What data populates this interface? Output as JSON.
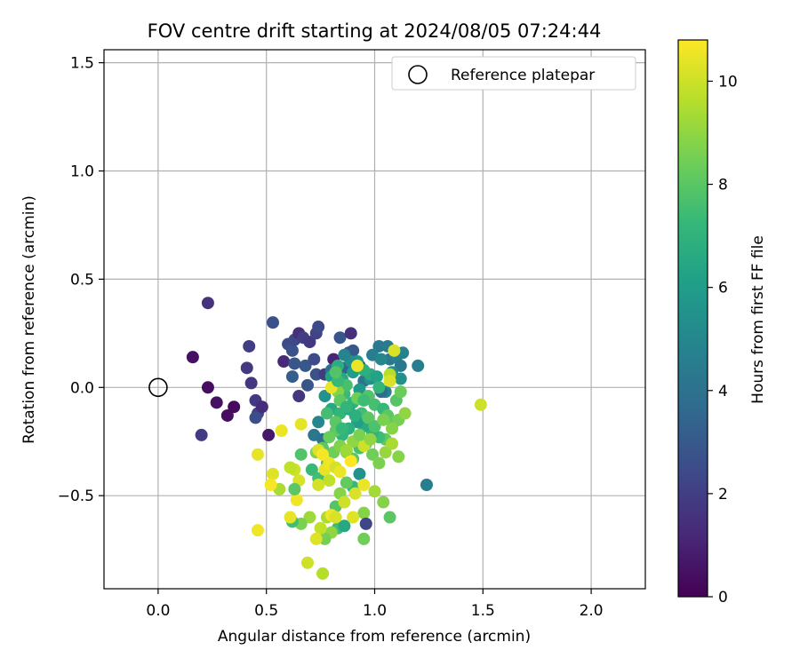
{
  "chart_data": {
    "type": "scatter",
    "title": "FOV centre drift starting at 2024/08/05 07:24:44",
    "xlabel": "Angular distance from reference (arcmin)",
    "ylabel": "Rotation from reference (arcmin)",
    "xlim": [
      -0.25,
      2.25
    ],
    "ylim": [
      -0.93,
      1.56
    ],
    "xticks": [
      "0.0",
      "0.5",
      "1.0",
      "1.5",
      "2.0"
    ],
    "yticks": [
      "−0.5",
      "0.0",
      "0.5",
      "1.0",
      "1.5"
    ],
    "grid": true,
    "legend": {
      "placement": "top-right",
      "label": "Reference platepar"
    },
    "reference_point": {
      "x": 0.0,
      "y": 0.0
    },
    "colorbar": {
      "label": "Hours from first FF file",
      "min": 0,
      "max": 10.8,
      "ticks": [
        "0",
        "2",
        "4",
        "6",
        "8",
        "10"
      ],
      "colormap": "viridis"
    },
    "colors": {
      "viridis": [
        "#440154",
        "#482878",
        "#3e4989",
        "#31688e",
        "#26828e",
        "#1f9e89",
        "#35b779",
        "#6ece58",
        "#b5de2b",
        "#fde725"
      ]
    },
    "points": [
      [
        0.23,
        0.39,
        1.6
      ],
      [
        0.16,
        0.14,
        0.5
      ],
      [
        0.23,
        0.0,
        0.4
      ],
      [
        0.27,
        -0.07,
        0.5
      ],
      [
        0.32,
        -0.13,
        0.4
      ],
      [
        0.35,
        -0.09,
        0.3
      ],
      [
        0.2,
        -0.22,
        1.9
      ],
      [
        0.42,
        0.19,
        2.0
      ],
      [
        0.41,
        0.09,
        1.8
      ],
      [
        0.43,
        0.02,
        1.7
      ],
      [
        0.45,
        -0.06,
        1.8
      ],
      [
        0.46,
        -0.12,
        2.1
      ],
      [
        0.48,
        -0.09,
        1.4
      ],
      [
        0.51,
        -0.22,
        0.7
      ],
      [
        0.45,
        -0.14,
        2.6
      ],
      [
        0.53,
        0.3,
        2.7
      ],
      [
        0.58,
        0.12,
        1.3
      ],
      [
        0.6,
        0.2,
        2.5
      ],
      [
        0.62,
        0.17,
        2.8
      ],
      [
        0.63,
        0.22,
        2.4
      ],
      [
        0.65,
        0.25,
        1.5
      ],
      [
        0.67,
        0.23,
        2.0
      ],
      [
        0.7,
        0.21,
        1.8
      ],
      [
        0.73,
        0.25,
        2.2
      ],
      [
        0.74,
        0.28,
        2.4
      ],
      [
        0.63,
        0.11,
        2.9
      ],
      [
        0.68,
        0.1,
        3.0
      ],
      [
        0.72,
        0.13,
        2.5
      ],
      [
        0.62,
        0.05,
        3.2
      ],
      [
        0.65,
        -0.04,
        1.7
      ],
      [
        0.69,
        0.01,
        2.9
      ],
      [
        0.73,
        0.06,
        2.7
      ],
      [
        0.77,
        0.06,
        1.9
      ],
      [
        0.81,
        0.13,
        1.1
      ],
      [
        0.84,
        0.23,
        2.9
      ],
      [
        0.88,
        0.16,
        3.3
      ],
      [
        0.89,
        0.25,
        1.5
      ],
      [
        0.9,
        0.17,
        3.0
      ],
      [
        0.93,
        0.1,
        1.9
      ],
      [
        0.86,
        0.09,
        3.5
      ],
      [
        0.8,
        0.08,
        3.9
      ],
      [
        0.95,
        0.03,
        4.2
      ],
      [
        0.99,
        0.15,
        4.6
      ],
      [
        1.02,
        0.19,
        4.4
      ],
      [
        1.06,
        0.19,
        4.5
      ],
      [
        1.07,
        0.13,
        4.3
      ],
      [
        1.1,
        0.14,
        4.7
      ],
      [
        1.12,
        0.1,
        4.3
      ],
      [
        1.13,
        0.16,
        4.8
      ],
      [
        1.2,
        0.1,
        4.6
      ],
      [
        1.03,
        0.13,
        5.0
      ],
      [
        1.05,
        -0.02,
        4.8
      ],
      [
        1.08,
        0.07,
        5.2
      ],
      [
        1.12,
        0.04,
        5.4
      ],
      [
        1.03,
        -0.02,
        3.8
      ],
      [
        0.98,
        0.04,
        5.4
      ],
      [
        0.93,
        -0.01,
        5.8
      ],
      [
        0.9,
        0.07,
        6.0
      ],
      [
        0.85,
        0.04,
        6.5
      ],
      [
        0.83,
        0.1,
        6.7
      ],
      [
        0.8,
        0.05,
        6.2
      ],
      [
        0.77,
        -0.04,
        5.5
      ],
      [
        0.74,
        -0.16,
        5.0
      ],
      [
        0.72,
        -0.22,
        4.3
      ],
      [
        0.76,
        -0.24,
        4.0
      ],
      [
        0.8,
        -0.1,
        6.5
      ],
      [
        0.84,
        -0.12,
        7.1
      ],
      [
        0.86,
        -0.03,
        7.3
      ],
      [
        0.9,
        -0.07,
        7.0
      ],
      [
        0.94,
        -0.12,
        7.5
      ],
      [
        0.97,
        -0.04,
        7.8
      ],
      [
        1.0,
        -0.08,
        7.6
      ],
      [
        1.04,
        -0.1,
        7.2
      ],
      [
        1.06,
        -0.13,
        8.0
      ],
      [
        1.09,
        -0.16,
        8.2
      ],
      [
        1.11,
        -0.15,
        8.5
      ],
      [
        1.14,
        -0.12,
        9.0
      ],
      [
        1.08,
        -0.19,
        8.8
      ],
      [
        1.05,
        -0.24,
        8.1
      ],
      [
        1.02,
        -0.23,
        7.4
      ],
      [
        0.99,
        -0.21,
        7.0
      ],
      [
        0.95,
        -0.18,
        6.6
      ],
      [
        0.92,
        -0.16,
        6.1
      ],
      [
        0.88,
        -0.19,
        6.8
      ],
      [
        0.85,
        -0.22,
        7.0
      ],
      [
        0.82,
        -0.2,
        8.1
      ],
      [
        0.79,
        -0.23,
        8.3
      ],
      [
        0.76,
        -0.28,
        8.0
      ],
      [
        0.73,
        -0.3,
        8.6
      ],
      [
        0.71,
        -0.38,
        7.3
      ],
      [
        0.74,
        -0.42,
        7.5
      ],
      [
        0.78,
        -0.35,
        7.8
      ],
      [
        0.81,
        -0.3,
        8.4
      ],
      [
        0.84,
        -0.27,
        8.7
      ],
      [
        0.87,
        -0.3,
        8.9
      ],
      [
        0.9,
        -0.33,
        8.0
      ],
      [
        0.93,
        -0.28,
        7.6
      ],
      [
        0.96,
        -0.26,
        8.2
      ],
      [
        0.99,
        -0.31,
        8.4
      ],
      [
        1.02,
        -0.35,
        8.6
      ],
      [
        1.05,
        -0.3,
        9.1
      ],
      [
        1.08,
        -0.26,
        9.4
      ],
      [
        1.11,
        -0.32,
        8.8
      ],
      [
        1.1,
        -0.06,
        7.9
      ],
      [
        1.12,
        -0.02,
        8.3
      ],
      [
        1.07,
        0.06,
        9.6
      ],
      [
        1.09,
        0.17,
        10.2
      ],
      [
        1.24,
        -0.45,
        4.6
      ],
      [
        1.49,
        -0.08,
        10.0
      ],
      [
        1.0,
        -0.48,
        9.3
      ],
      [
        1.04,
        -0.53,
        8.8
      ],
      [
        1.07,
        -0.6,
        8.0
      ],
      [
        0.95,
        -0.58,
        8.8
      ],
      [
        0.95,
        -0.7,
        8.4
      ],
      [
        0.96,
        -0.63,
        2.3
      ],
      [
        0.93,
        -0.4,
        5.5
      ],
      [
        0.9,
        -0.46,
        7.2
      ],
      [
        0.87,
        -0.44,
        8.2
      ],
      [
        0.84,
        -0.49,
        8.8
      ],
      [
        0.82,
        -0.55,
        7.9
      ],
      [
        0.83,
        -0.65,
        7.4
      ],
      [
        0.86,
        -0.64,
        6.5
      ],
      [
        0.8,
        -0.67,
        9.0
      ],
      [
        0.77,
        -0.7,
        8.5
      ],
      [
        0.78,
        -0.6,
        9.4
      ],
      [
        0.75,
        -0.65,
        9.8
      ],
      [
        0.73,
        -0.7,
        10.3
      ],
      [
        0.76,
        -0.86,
        9.6
      ],
      [
        0.69,
        -0.81,
        10.0
      ],
      [
        0.7,
        -0.6,
        9.2
      ],
      [
        0.66,
        -0.63,
        8.6
      ],
      [
        0.62,
        -0.62,
        7.5
      ],
      [
        0.61,
        -0.6,
        10.4
      ],
      [
        0.64,
        -0.52,
        10.6
      ],
      [
        0.65,
        -0.43,
        10.2
      ],
      [
        0.63,
        -0.38,
        10.0
      ],
      [
        0.61,
        -0.37,
        9.8
      ],
      [
        0.63,
        -0.47,
        8.0
      ],
      [
        0.56,
        -0.47,
        9.4
      ],
      [
        0.53,
        -0.4,
        10.3
      ],
      [
        0.52,
        -0.45,
        10.7
      ],
      [
        0.46,
        -0.31,
        10.4
      ],
      [
        0.46,
        -0.66,
        10.6
      ],
      [
        0.57,
        -0.2,
        10.5
      ],
      [
        0.66,
        -0.17,
        10.4
      ],
      [
        0.66,
        -0.31,
        7.8
      ],
      [
        0.74,
        -0.29,
        10.2
      ],
      [
        0.76,
        -0.31,
        10.7
      ],
      [
        0.77,
        -0.38,
        10.4
      ],
      [
        0.79,
        -0.35,
        10.6
      ],
      [
        0.82,
        -0.37,
        10.1
      ],
      [
        0.84,
        -0.39,
        10.5
      ],
      [
        0.89,
        -0.34,
        10.8
      ],
      [
        0.95,
        -0.27,
        10.0
      ],
      [
        0.91,
        -0.49,
        10.2
      ],
      [
        0.95,
        -0.45,
        10.5
      ],
      [
        0.9,
        -0.6,
        10.3
      ],
      [
        0.8,
        -0.59,
        10.6
      ],
      [
        0.82,
        -0.6,
        10.2
      ],
      [
        0.74,
        -0.45,
        10.1
      ],
      [
        0.79,
        -0.43,
        9.8
      ],
      [
        0.86,
        -0.53,
        10.0
      ],
      [
        0.9,
        -0.25,
        9.0
      ],
      [
        0.93,
        -0.22,
        8.6
      ],
      [
        0.97,
        -0.14,
        8.0
      ],
      [
        0.92,
        -0.05,
        8.4
      ],
      [
        0.87,
        0.01,
        7.6
      ],
      [
        0.83,
        -0.02,
        8.8
      ],
      [
        0.8,
        0.0,
        10.5
      ],
      [
        0.78,
        -0.12,
        7.5
      ],
      [
        0.82,
        -0.16,
        8.0
      ],
      [
        0.85,
        -0.19,
        7.2
      ],
      [
        0.88,
        -0.1,
        6.4
      ],
      [
        0.91,
        -0.13,
        6.8
      ],
      [
        1.0,
        -0.18,
        7.7
      ],
      [
        0.98,
        -0.24,
        9.0
      ],
      [
        0.87,
        -0.29,
        9.2
      ],
      [
        0.98,
        0.06,
        6.6
      ],
      [
        1.01,
        0.05,
        6.2
      ],
      [
        0.95,
        0.08,
        6.8
      ],
      [
        0.92,
        0.12,
        5.8
      ],
      [
        0.89,
        0.12,
        5.3
      ],
      [
        0.86,
        0.15,
        4.9
      ],
      [
        0.83,
        0.03,
        7.3
      ],
      [
        0.82,
        0.07,
        7.8
      ],
      [
        0.84,
        -0.06,
        8.1
      ],
      [
        0.87,
        -0.09,
        7.1
      ],
      [
        0.95,
        -0.06,
        7.4
      ],
      [
        1.02,
        0.0,
        7.1
      ],
      [
        0.92,
        0.1,
        10.5
      ],
      [
        1.07,
        0.03,
        10.2
      ],
      [
        1.04,
        -0.15,
        8.6
      ]
    ]
  }
}
